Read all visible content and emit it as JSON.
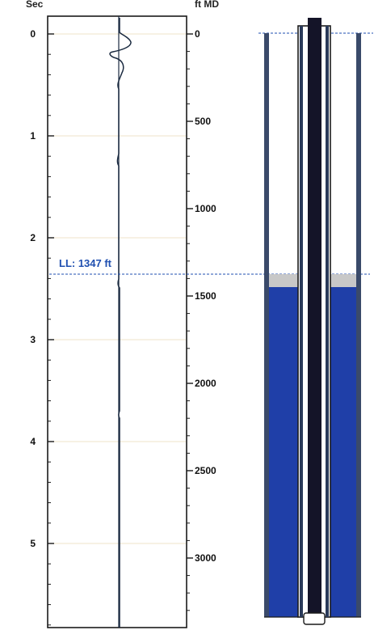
{
  "axes": {
    "left_title": "Sec",
    "right_title": "ft MD",
    "time_ticks": [
      "0",
      "1",
      "2",
      "3",
      "4",
      "5"
    ],
    "depth_ticks": [
      "0",
      "500",
      "1000",
      "1500",
      "2000",
      "2500",
      "3000"
    ]
  },
  "liquid_level": {
    "label": "LL: 1347 ft",
    "depth_ft": 1347
  },
  "colors": {
    "fluid": "#1f3fa8",
    "gas_cap": "#c8c8c8",
    "tubing": "#141428",
    "marker_line": "#1f4fb0",
    "gridline": "#efe3c8",
    "trace": "#1a2a40"
  }
}
